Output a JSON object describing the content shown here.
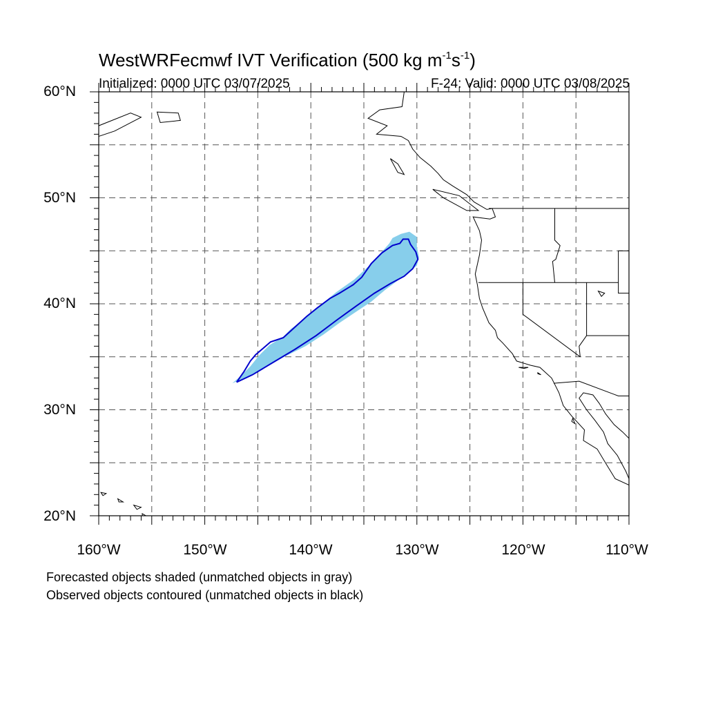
{
  "title": {
    "model": "WestWRFecmwf IVT Verification",
    "threshold_prefix": "(500 kg m",
    "sup1": "-1",
    "mid": "s",
    "sup2": "-1",
    "suffix": ")"
  },
  "initialized": "Initialized: 0000 UTC 03/07/2025",
  "valid": "F-24: Valid: 0000 UTC 03/08/2025",
  "axes": {
    "lat_labels": [
      "60°N",
      "50°N",
      "40°N",
      "30°N",
      "20°N"
    ],
    "lon_labels": [
      "160°W",
      "150°W",
      "140°W",
      "130°W",
      "120°W",
      "110°W"
    ]
  },
  "legend_notes": [
    "Forecasted objects shaded (unmatched objects in gray)",
    "Observed objects contoured (unmatched objects in black)"
  ],
  "colors": {
    "forecast_fill": "#87ceeb",
    "observed_contour": "#0000cd",
    "coastline": "#000000",
    "grid": "#555555"
  },
  "map": {
    "lon_range": [
      -160,
      -110
    ],
    "lat_range": [
      20,
      60
    ],
    "grid_lon_step": 5,
    "grid_lat_step": 5,
    "forecast_object": [
      [
        -147.4,
        32.5
      ],
      [
        -146.2,
        33.0
      ],
      [
        -144.5,
        33.9
      ],
      [
        -142.5,
        35.0
      ],
      [
        -140.5,
        36.0
      ],
      [
        -138.8,
        37.1
      ],
      [
        -137.3,
        38.2
      ],
      [
        -135.8,
        39.2
      ],
      [
        -134.3,
        40.2
      ],
      [
        -133.0,
        41.3
      ],
      [
        -131.8,
        42.2
      ],
      [
        -130.9,
        42.9
      ],
      [
        -130.0,
        43.6
      ],
      [
        -129.8,
        44.4
      ],
      [
        -130.0,
        45.4
      ],
      [
        -130.0,
        46.3
      ],
      [
        -130.7,
        46.8
      ],
      [
        -131.5,
        46.6
      ],
      [
        -132.3,
        46.2
      ],
      [
        -132.6,
        45.7
      ],
      [
        -133.3,
        44.9
      ],
      [
        -134.5,
        43.6
      ],
      [
        -135.9,
        42.3
      ],
      [
        -137.6,
        41.1
      ],
      [
        -139.2,
        39.8
      ],
      [
        -140.6,
        38.6
      ],
      [
        -141.9,
        37.6
      ],
      [
        -142.6,
        36.9
      ],
      [
        -143.9,
        36.1
      ],
      [
        -144.9,
        35.1
      ],
      [
        -145.7,
        34.1
      ],
      [
        -146.6,
        33.2
      ],
      [
        -147.4,
        32.5
      ]
    ],
    "observed_object": [
      [
        -147.0,
        32.6
      ],
      [
        -145.5,
        33.3
      ],
      [
        -143.5,
        34.5
      ],
      [
        -141.5,
        35.7
      ],
      [
        -139.5,
        37.0
      ],
      [
        -137.5,
        38.5
      ],
      [
        -135.7,
        39.8
      ],
      [
        -134.0,
        41.0
      ],
      [
        -132.5,
        41.9
      ],
      [
        -131.2,
        42.6
      ],
      [
        -130.4,
        43.3
      ],
      [
        -129.9,
        44.2
      ],
      [
        -130.1,
        44.9
      ],
      [
        -130.6,
        45.6
      ],
      [
        -130.8,
        46.1
      ],
      [
        -131.3,
        46.1
      ],
      [
        -131.6,
        45.7
      ],
      [
        -132.3,
        45.5
      ],
      [
        -133.3,
        44.8
      ],
      [
        -134.3,
        43.8
      ],
      [
        -135.2,
        42.5
      ],
      [
        -136.0,
        41.8
      ],
      [
        -137.3,
        41.0
      ],
      [
        -138.2,
        40.5
      ],
      [
        -139.4,
        39.6
      ],
      [
        -140.4,
        38.8
      ],
      [
        -141.5,
        37.8
      ],
      [
        -142.6,
        36.8
      ],
      [
        -143.8,
        36.4
      ],
      [
        -144.5,
        35.8
      ],
      [
        -145.2,
        35.2
      ],
      [
        -145.7,
        34.6
      ],
      [
        -146.3,
        33.6
      ],
      [
        -147.0,
        32.6
      ]
    ],
    "coastline": [
      [
        -131.2,
        60.0
      ],
      [
        -131.4,
        58.6
      ],
      [
        -133.5,
        58.3
      ],
      [
        -134.6,
        57.5
      ],
      [
        -132.8,
        56.8
      ],
      [
        -133.8,
        56.0
      ],
      [
        -131.5,
        55.8
      ],
      [
        -130.8,
        55.4
      ],
      [
        -130.4,
        54.6
      ],
      [
        -129.7,
        53.8
      ],
      [
        -128.7,
        53.0
      ],
      [
        -128.0,
        52.3
      ],
      [
        -127.5,
        51.7
      ],
      [
        -126.6,
        51.1
      ],
      [
        -125.3,
        50.3
      ],
      [
        -124.6,
        49.6
      ],
      [
        -123.4,
        48.9
      ],
      [
        -122.9,
        49.0
      ],
      [
        -122.6,
        48.2
      ],
      [
        -123.1,
        48.0
      ],
      [
        -124.7,
        48.2
      ],
      [
        -124.1,
        46.9
      ],
      [
        -123.9,
        46.0
      ],
      [
        -124.1,
        44.6
      ],
      [
        -124.5,
        42.8
      ],
      [
        -124.3,
        41.8
      ],
      [
        -124.1,
        40.5
      ],
      [
        -123.8,
        39.6
      ],
      [
        -123.2,
        38.2
      ],
      [
        -122.6,
        37.5
      ],
      [
        -122.4,
        36.8
      ],
      [
        -121.9,
        36.3
      ],
      [
        -121.0,
        35.3
      ],
      [
        -120.6,
        34.6
      ],
      [
        -119.3,
        34.2
      ],
      [
        -118.4,
        34.0
      ],
      [
        -117.3,
        33.0
      ],
      [
        -116.9,
        32.2
      ],
      [
        -116.6,
        31.6
      ],
      [
        -116.2,
        30.4
      ],
      [
        -115.4,
        29.4
      ],
      [
        -114.2,
        28.1
      ],
      [
        -114.3,
        27.1
      ],
      [
        -113.0,
        26.3
      ],
      [
        -112.1,
        24.8
      ],
      [
        -111.3,
        23.5
      ],
      [
        -110.0,
        22.9
      ]
    ],
    "coastline_gulf": [
      [
        -110.0,
        27.3
      ],
      [
        -110.6,
        27.9
      ],
      [
        -111.4,
        28.6
      ],
      [
        -112.2,
        29.6
      ],
      [
        -112.8,
        30.6
      ],
      [
        -113.4,
        31.4
      ],
      [
        -114.3,
        31.6
      ],
      [
        -114.7,
        31.1
      ],
      [
        -114.0,
        30.0
      ],
      [
        -113.2,
        29.0
      ],
      [
        -112.4,
        27.9
      ],
      [
        -112.0,
        26.8
      ],
      [
        -111.1,
        25.7
      ],
      [
        -110.3,
        24.2
      ],
      [
        -110.0,
        23.5
      ]
    ],
    "borders": [
      [
        [
          -123.2,
          49.0
        ],
        [
          -110.0,
          49.0
        ]
      ],
      [
        [
          -124.2,
          42.0
        ],
        [
          -111.0,
          42.0
        ]
      ],
      [
        [
          -120.0,
          42.0
        ],
        [
          -120.0,
          39.0
        ],
        [
          -114.6,
          35.0
        ]
      ],
      [
        [
          -117.1,
          32.5
        ],
        [
          -114.7,
          32.7
        ],
        [
          -111.0,
          31.3
        ],
        [
          -110.0,
          31.3
        ]
      ],
      [
        [
          -117.0,
          49.0
        ],
        [
          -117.0,
          46.0
        ],
        [
          -116.8,
          45.8
        ],
        [
          -116.5,
          45.5
        ],
        [
          -116.9,
          44.2
        ],
        [
          -117.2,
          44.0
        ],
        [
          -117.0,
          42.0
        ]
      ],
      [
        [
          -114.0,
          42.0
        ],
        [
          -114.0,
          37.0
        ],
        [
          -114.7,
          36.0
        ],
        [
          -114.6,
          35.0
        ]
      ],
      [
        [
          -111.0,
          45.0
        ],
        [
          -110.0,
          45.0
        ]
      ],
      [
        [
          -111.0,
          45.0
        ],
        [
          -111.0,
          41.0
        ],
        [
          -110.0,
          41.0
        ]
      ],
      [
        [
          -114.0,
          37.0
        ],
        [
          -110.0,
          37.0
        ]
      ],
      [
        [
          -110.0,
          60.0
        ],
        [
          -120.0,
          60.0
        ],
        [
          -120.0,
          60.0
        ]
      ]
    ],
    "islands": [
      [
        [
          -155.9,
          20.2
        ],
        [
          -155.2,
          19.8
        ],
        [
          -154.9,
          19.5
        ],
        [
          -155.8,
          19.0
        ],
        [
          -155.9,
          20.2
        ]
      ],
      [
        [
          -156.7,
          21.0
        ],
        [
          -156.0,
          20.8
        ],
        [
          -156.4,
          20.6
        ],
        [
          -156.7,
          21.0
        ]
      ],
      [
        [
          -158.2,
          21.6
        ],
        [
          -157.7,
          21.3
        ],
        [
          -158.1,
          21.3
        ],
        [
          -158.2,
          21.6
        ]
      ],
      [
        [
          -159.8,
          22.2
        ],
        [
          -159.3,
          22.1
        ],
        [
          -159.6,
          21.9
        ],
        [
          -159.8,
          22.2
        ]
      ],
      [
        [
          -160.0,
          56.8
        ],
        [
          -157.0,
          58.0
        ],
        [
          -156.0,
          57.6
        ],
        [
          -158.5,
          56.3
        ],
        [
          -160.0,
          55.8
        ]
      ],
      [
        [
          -154.5,
          58.1
        ],
        [
          -152.5,
          58.0
        ],
        [
          -152.3,
          57.3
        ],
        [
          -154.2,
          57.1
        ],
        [
          -154.5,
          58.1
        ]
      ],
      [
        [
          -132.5,
          53.7
        ],
        [
          -131.8,
          53.2
        ],
        [
          -131.2,
          52.2
        ],
        [
          -131.8,
          52.4
        ],
        [
          -132.5,
          53.7
        ]
      ],
      [
        [
          -128.5,
          50.8
        ],
        [
          -126.0,
          50.2
        ],
        [
          -124.2,
          48.8
        ],
        [
          -125.3,
          48.8
        ],
        [
          -127.5,
          50.0
        ],
        [
          -128.5,
          50.8
        ]
      ],
      [
        [
          -120.4,
          34.0
        ],
        [
          -119.5,
          34.0
        ],
        [
          -119.9,
          33.9
        ],
        [
          -120.4,
          34.0
        ]
      ],
      [
        [
          -118.6,
          33.5
        ],
        [
          -118.3,
          33.3
        ],
        [
          -118.6,
          33.4
        ],
        [
          -118.6,
          33.5
        ]
      ],
      [
        [
          -115.3,
          29.2
        ],
        [
          -115.1,
          28.7
        ],
        [
          -115.4,
          28.9
        ],
        [
          -115.3,
          29.2
        ]
      ],
      [
        [
          -112.9,
          41.2
        ],
        [
          -112.3,
          41.0
        ],
        [
          -112.6,
          40.7
        ],
        [
          -112.9,
          41.2
        ]
      ]
    ]
  }
}
